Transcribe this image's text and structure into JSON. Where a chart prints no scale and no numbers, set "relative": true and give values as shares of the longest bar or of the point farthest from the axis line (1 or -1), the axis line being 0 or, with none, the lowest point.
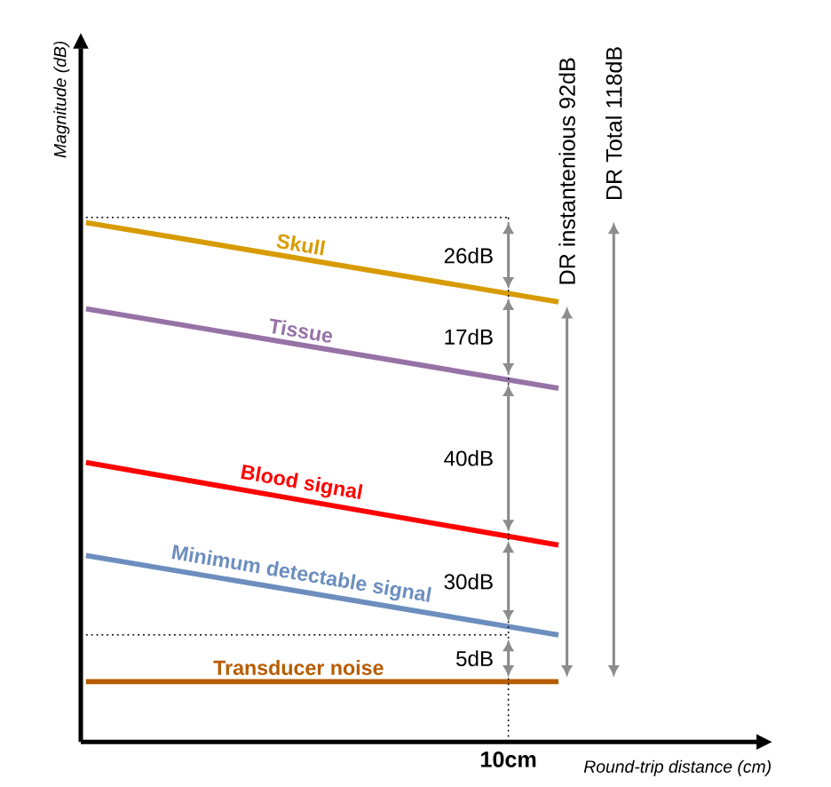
{
  "chart_data": {
    "type": "line",
    "relative": true,
    "xlabel": "Round-trip distance (cm)",
    "ylabel": "Magnitude (dB)",
    "categories": [
      null,
      null
    ],
    "marker": "none",
    "line_style": "solid",
    "series": [
      {
        "name": "Skull",
        "color": "#d79b00",
        "values": [
          1,
          0.847
        ]
      },
      {
        "name": "Tissue",
        "color": "#9673a6",
        "values": [
          0.834,
          0.681
        ]
      },
      {
        "name": "Blood signal",
        "color": "#ff0000",
        "values": [
          0.538,
          0.379
        ]
      },
      {
        "name": "Minimum detectable signal",
        "color": "#6c8ebf",
        "values": [
          0.359,
          0.206
        ]
      },
      {
        "name": "Transducer noise",
        "color": "#b85c00",
        "values": [
          0.116,
          0.116
        ]
      }
    ],
    "ref_lines": [
      {
        "axis": "y",
        "value": 1.01,
        "line_style": "dotted"
      },
      {
        "axis": "y",
        "value": 0.206,
        "line_style": "dotted"
      }
    ],
    "annotations": [
      "10cm",
      "26dB",
      "17dB",
      "40dB",
      "30dB",
      "5dB",
      "DR instantenious 92dB",
      "DR Total 118dB"
    ]
  }
}
